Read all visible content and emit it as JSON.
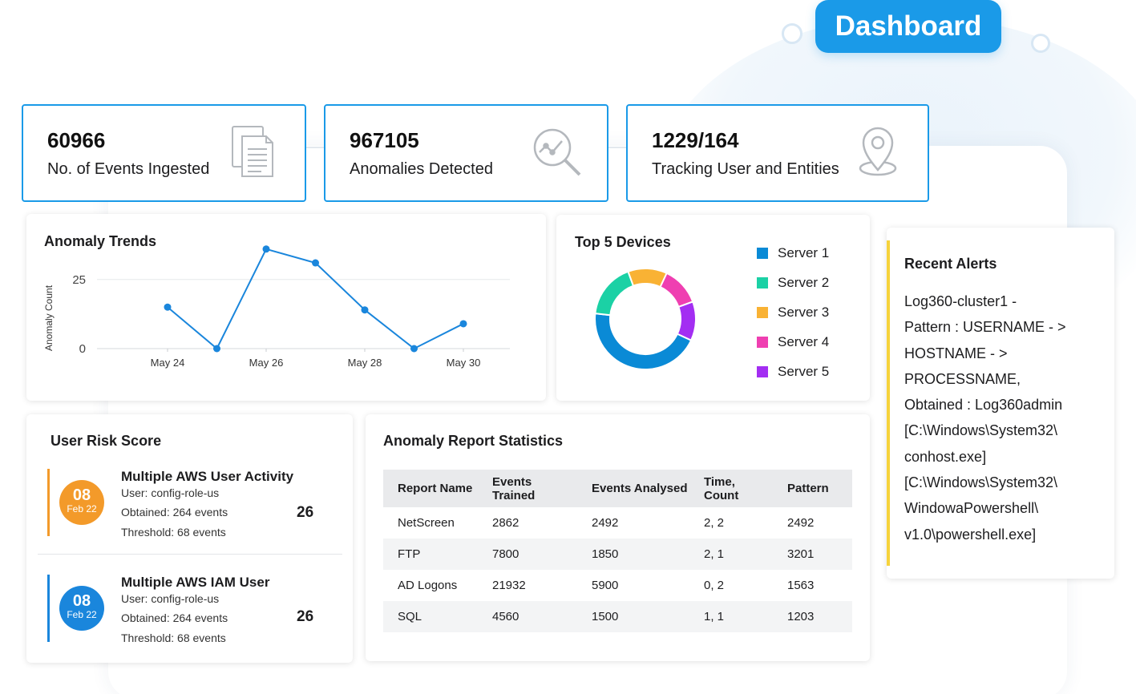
{
  "header": {
    "dashboard_label": "Dashboard"
  },
  "stats": [
    {
      "value": "60966",
      "label": "No. of Events Ingested",
      "icon": "document-icon"
    },
    {
      "value": "967105",
      "label": "Anomalies Detected",
      "icon": "magnifier-trend-icon"
    },
    {
      "value": "1229/164",
      "label": "Tracking User and Entities",
      "icon": "location-pin-icon"
    }
  ],
  "anomaly_trends": {
    "title": "Anomaly Trends",
    "chart_data": {
      "type": "line",
      "title": "Anomaly Trends",
      "xlabel": "",
      "ylabel": "Anomaly Count",
      "x": [
        "May 24",
        "May 25",
        "May 26",
        "May 27",
        "May 28",
        "May 29",
        "May 30"
      ],
      "values": [
        15,
        0,
        36,
        31,
        14,
        0,
        9
      ],
      "x_ticks": [
        "May 24",
        "May 26",
        "May 28",
        "May 30"
      ],
      "y_ticks": [
        0,
        25
      ],
      "ylim": [
        0,
        40
      ],
      "grid": "horizontal",
      "color": "#1a86dc"
    }
  },
  "top_devices": {
    "title": "Top 5 Devices",
    "chart_data": {
      "type": "pie",
      "style": "donut",
      "labels": [
        "Server 1",
        "Server 2",
        "Server 3",
        "Server 4",
        "Server 5"
      ],
      "values": [
        43,
        17,
        12,
        12,
        12
      ],
      "colors": [
        "#0a8ad6",
        "#1bd1a5",
        "#f9b234",
        "#ef3fb1",
        "#a32ef2"
      ],
      "legend": "right"
    }
  },
  "user_risk": {
    "title": "User Risk Score",
    "items": [
      {
        "day": "08",
        "month": "Feb 22",
        "title": "Multiple AWS User Activity",
        "user_key": "User:",
        "user_val": "config-role-us",
        "obtained_key": "Obtained:",
        "obtained_val": "264 events",
        "threshold_key": "Threshold:",
        "threshold_val": "68 events",
        "score": "26",
        "color": "#f39a2a"
      },
      {
        "day": "08",
        "month": "Feb 22",
        "title": "Multiple AWS IAM User",
        "user_key": "User:",
        "user_val": "config-role-us",
        "obtained_key": "Obtained:",
        "obtained_val": "264 events",
        "threshold_key": "Threshold:",
        "threshold_val": "68 events",
        "score": "26",
        "color": "#1a86dc"
      }
    ]
  },
  "report_stats": {
    "title": "Anomaly Report Statistics",
    "columns": [
      "Report Name",
      "Events Trained",
      "Events Analysed",
      "Time, Count",
      "Pattern"
    ],
    "rows": [
      [
        "NetScreen",
        "2862",
        "2492",
        "2, 2",
        "2492"
      ],
      [
        "FTP",
        "7800",
        "1850",
        "2, 1",
        "3201"
      ],
      [
        "AD Logons",
        "21932",
        "5900",
        "0, 2",
        "1563"
      ],
      [
        "SQL",
        "4560",
        "1500",
        "1, 1",
        "1203"
      ]
    ]
  },
  "recent_alerts": {
    "title": "Recent Alerts",
    "lines": [
      "Log360-cluster1 -",
      "Pattern : USERNAME - >",
      "HOSTNAME - >",
      "PROCESSNAME,",
      "Obtained : Log360admin",
      "[C:\\Windows\\System32\\",
      "conhost.exe]",
      "[C:\\Windows\\System32\\",
      "WindowaPowershell\\",
      "v1.0\\powershell.exe]"
    ],
    "accent": "#f6d33c"
  }
}
